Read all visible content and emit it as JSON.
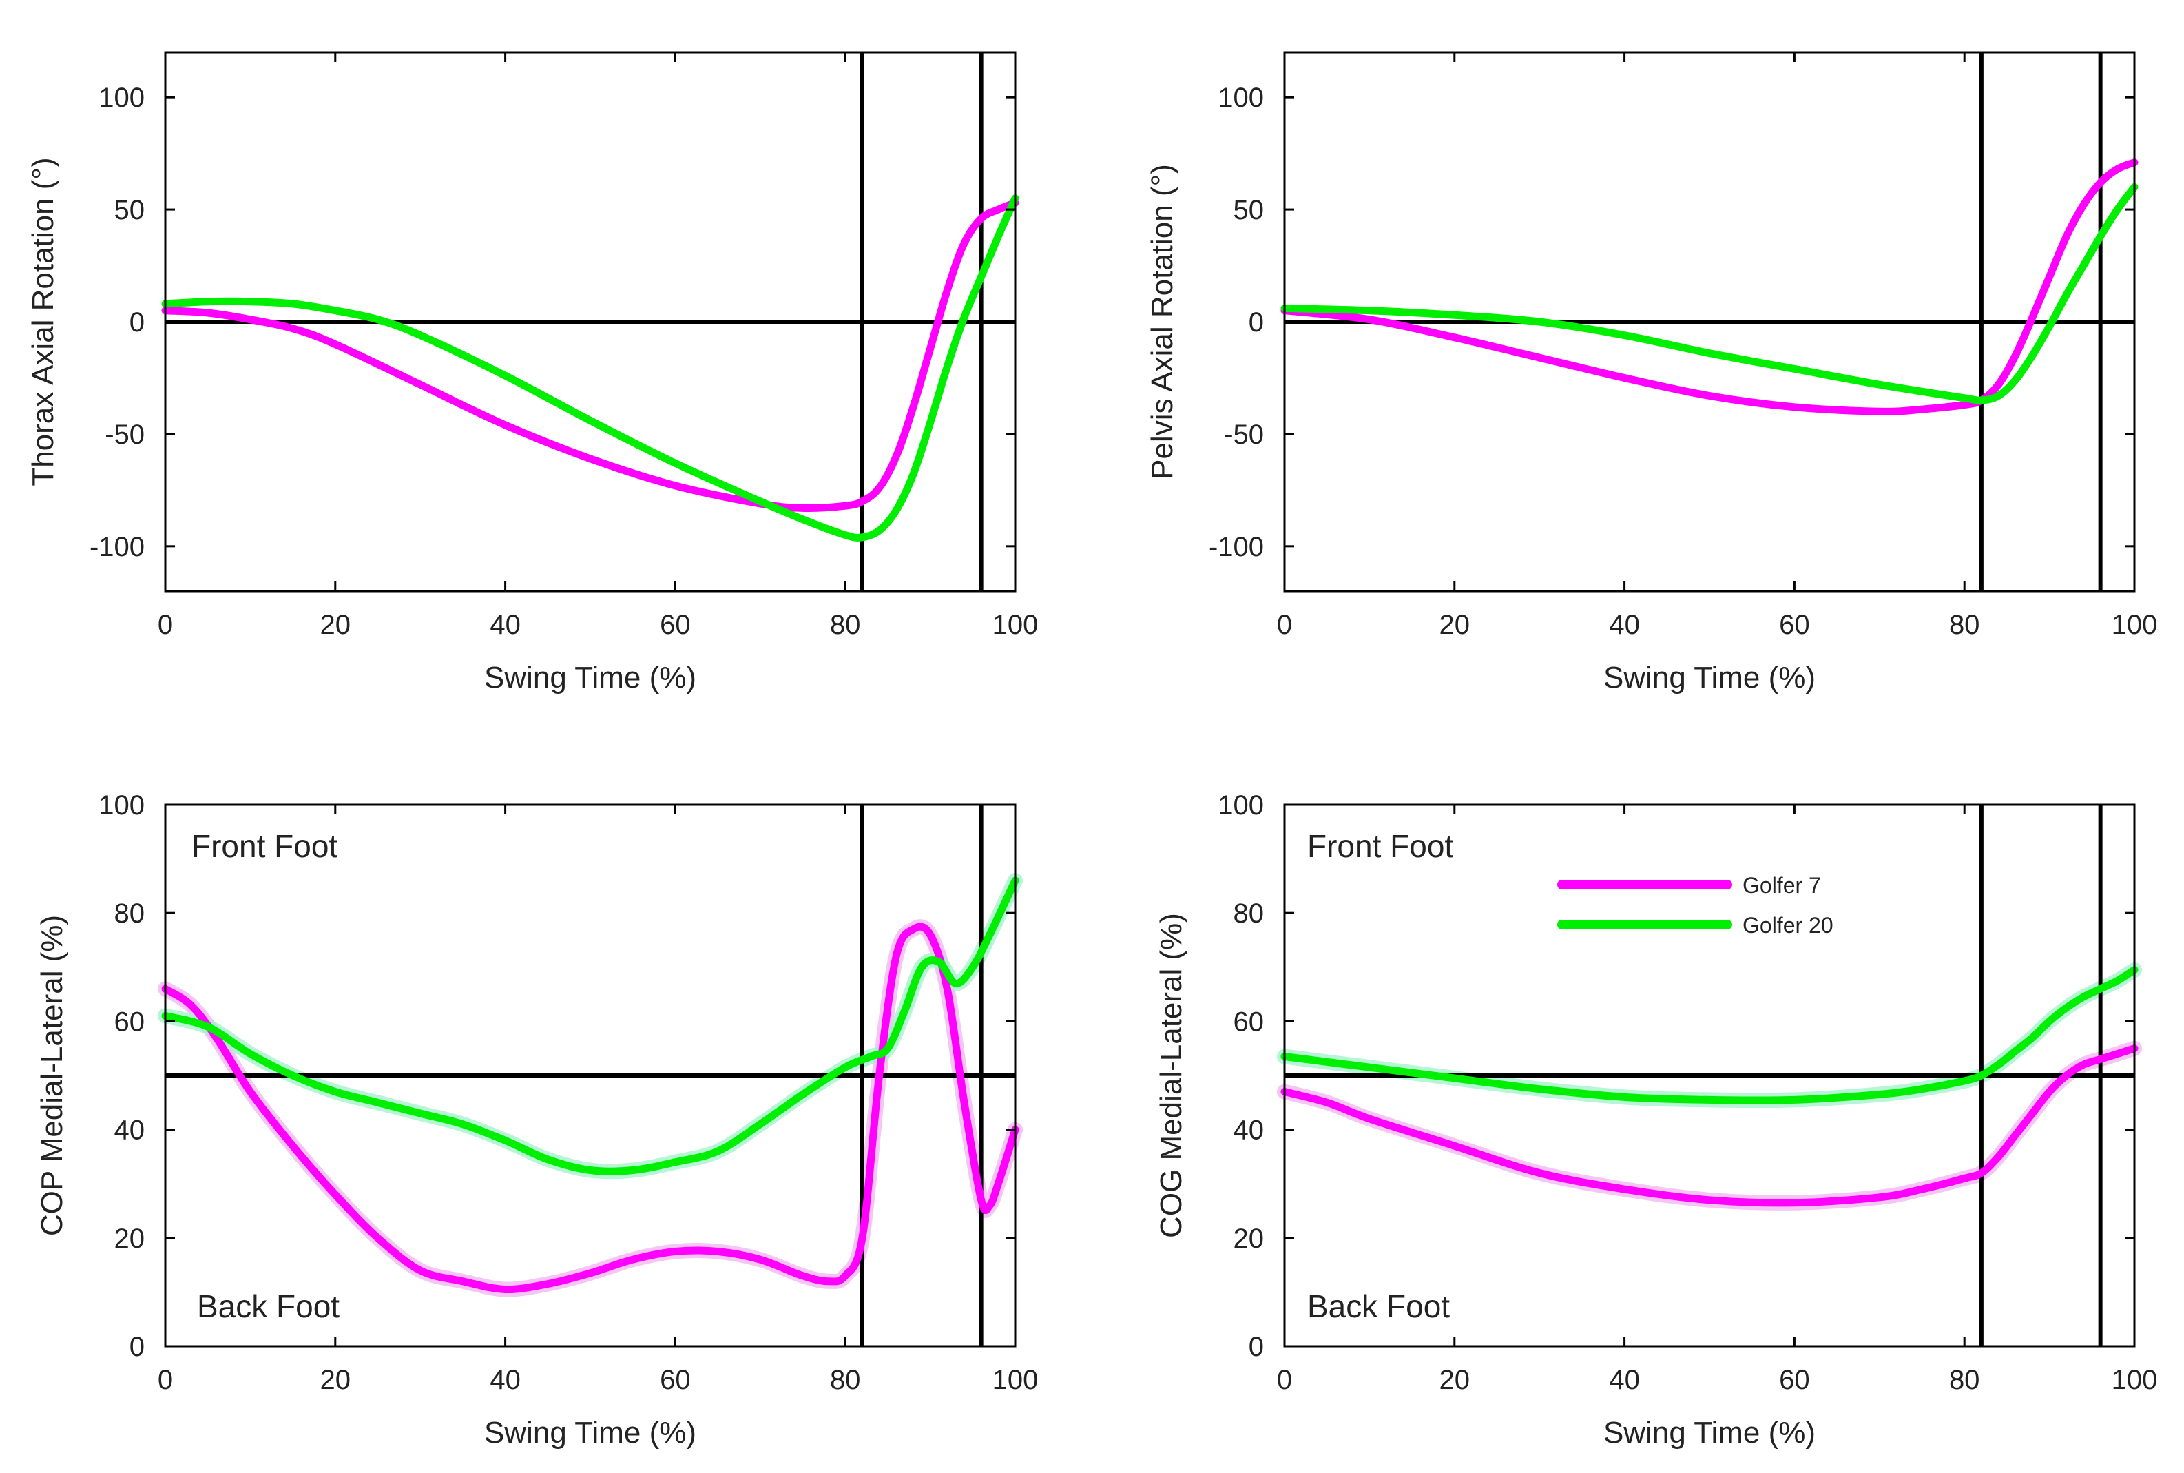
{
  "colors": {
    "golfer_7": "#ff00ff",
    "golfer_20": "#00ee00",
    "golfer_7_band": "#f2b3f2",
    "golfer_20_band": "#9ff2c9",
    "axes": "#000000"
  },
  "legend": {
    "items": [
      {
        "name": "Golfer 7",
        "color": "#ff00ff"
      },
      {
        "name": "Golfer 20",
        "color": "#00ee00"
      }
    ]
  },
  "chart_data": [
    {
      "type": "line",
      "xlabel": "Swing Time (%)",
      "ylabel": "Thorax Axial Rotation (°)",
      "xlim": [
        0,
        100
      ],
      "ylim": [
        -120,
        120
      ],
      "xticks": [
        0,
        20,
        40,
        60,
        80,
        100
      ],
      "yticks": [
        -100,
        -50,
        0,
        50,
        100
      ],
      "hlines": [
        0
      ],
      "vlines": [
        82,
        96
      ],
      "annotations": [],
      "series": [
        {
          "name": "Golfer 7",
          "x": [
            0,
            5,
            10,
            15,
            20,
            30,
            40,
            50,
            60,
            70,
            75,
            80,
            82,
            84,
            86,
            88,
            90,
            92,
            94,
            96,
            98,
            100
          ],
          "y": [
            5,
            4,
            1,
            -3,
            -10,
            -28,
            -46,
            -61,
            -73,
            -81,
            -83,
            -82,
            -80,
            -74,
            -60,
            -38,
            -12,
            14,
            35,
            46,
            50,
            53
          ]
        },
        {
          "name": "Golfer 20",
          "x": [
            0,
            5,
            10,
            15,
            20,
            25,
            30,
            40,
            50,
            60,
            70,
            75,
            80,
            82,
            84,
            86,
            88,
            90,
            92,
            94,
            96,
            98,
            100
          ],
          "y": [
            8,
            9,
            9,
            8,
            5,
            1,
            -6,
            -24,
            -44,
            -63,
            -80,
            -88,
            -95,
            -96,
            -93,
            -84,
            -68,
            -45,
            -20,
            2,
            20,
            38,
            55
          ]
        }
      ]
    },
    {
      "type": "line",
      "xlabel": "Swing Time (%)",
      "ylabel": "Pelvis Axial Rotation (°)",
      "xlim": [
        0,
        100
      ],
      "ylim": [
        -120,
        120
      ],
      "xticks": [
        0,
        20,
        40,
        60,
        80,
        100
      ],
      "yticks": [
        -100,
        -50,
        0,
        50,
        100
      ],
      "hlines": [
        0
      ],
      "vlines": [
        82,
        96
      ],
      "annotations": [],
      "series": [
        {
          "name": "Golfer 7",
          "x": [
            0,
            10,
            20,
            30,
            40,
            50,
            60,
            70,
            75,
            80,
            82,
            84,
            86,
            88,
            90,
            92,
            94,
            96,
            98,
            100
          ],
          "y": [
            5,
            1,
            -7,
            -16,
            -25,
            -33,
            -38,
            -40,
            -39,
            -37,
            -35,
            -28,
            -15,
            2,
            20,
            38,
            52,
            62,
            68,
            71
          ]
        },
        {
          "name": "Golfer 20",
          "x": [
            0,
            10,
            20,
            30,
            40,
            50,
            60,
            70,
            80,
            82,
            84,
            86,
            88,
            90,
            92,
            94,
            96,
            98,
            100
          ],
          "y": [
            6,
            5,
            3,
            0,
            -6,
            -14,
            -21,
            -28,
            -34,
            -35,
            -33,
            -26,
            -15,
            -2,
            12,
            25,
            38,
            50,
            60
          ]
        }
      ]
    },
    {
      "type": "line",
      "xlabel": "Swing Time (%)",
      "ylabel": "COP Medial-Lateral (%)",
      "xlim": [
        0,
        100
      ],
      "ylim": [
        0,
        100
      ],
      "xticks": [
        0,
        20,
        40,
        60,
        80,
        100
      ],
      "yticks": [
        0,
        20,
        40,
        60,
        80,
        100
      ],
      "hlines": [
        50
      ],
      "vlines": [
        82,
        96
      ],
      "annotations": [
        "Front Foot",
        "Back Foot"
      ],
      "series": [
        {
          "name": "Golfer 7",
          "x": [
            0,
            3,
            6,
            10,
            15,
            20,
            25,
            30,
            35,
            40,
            45,
            50,
            55,
            60,
            65,
            70,
            75,
            78,
            80,
            82,
            84,
            86,
            88,
            90,
            92,
            94,
            96,
            97,
            98,
            100
          ],
          "y": [
            66,
            63,
            57,
            47,
            37,
            28,
            20,
            14,
            12,
            10.5,
            11.5,
            13.5,
            16,
            17.5,
            17.5,
            16,
            13,
            12,
            13,
            20,
            50,
            72,
            77,
            76,
            66,
            45,
            27,
            26,
            30,
            40
          ]
        },
        {
          "name": "Golfer 20",
          "x": [
            0,
            5,
            10,
            15,
            20,
            25,
            30,
            35,
            40,
            45,
            50,
            55,
            60,
            65,
            70,
            75,
            80,
            83,
            85,
            87,
            89,
            91,
            93,
            95,
            97,
            100
          ],
          "y": [
            61,
            59,
            54,
            50,
            47,
            45,
            43,
            41,
            38,
            34.5,
            32.5,
            32.5,
            34,
            36,
            41,
            46.5,
            51.5,
            53.5,
            55,
            62,
            70,
            71,
            67,
            70,
            76,
            86
          ]
        }
      ]
    },
    {
      "type": "line",
      "xlabel": "Swing Time (%)",
      "ylabel": "COG Medial-Lateral (%)",
      "xlim": [
        0,
        100
      ],
      "ylim": [
        0,
        100
      ],
      "xticks": [
        0,
        20,
        40,
        60,
        80,
        100
      ],
      "yticks": [
        0,
        20,
        40,
        60,
        80,
        100
      ],
      "hlines": [
        50
      ],
      "vlines": [
        82,
        96
      ],
      "annotations": [
        "Front Foot",
        "Back Foot"
      ],
      "series": [
        {
          "name": "Golfer 7",
          "x": [
            0,
            5,
            10,
            20,
            30,
            40,
            50,
            60,
            70,
            75,
            80,
            82,
            84,
            86,
            88,
            90,
            92,
            94,
            96,
            98,
            100
          ],
          "y": [
            47,
            45,
            42,
            37,
            32,
            29,
            27,
            26.5,
            27.5,
            29,
            31,
            32,
            35,
            39,
            43,
            47,
            50,
            52,
            53,
            54,
            55
          ]
        },
        {
          "name": "Golfer 20",
          "x": [
            0,
            10,
            20,
            30,
            40,
            50,
            60,
            70,
            75,
            80,
            82,
            84,
            86,
            88,
            90,
            92,
            94,
            96,
            98,
            100
          ],
          "y": [
            53.5,
            51.5,
            49.5,
            47.5,
            46,
            45.5,
            45.5,
            46.5,
            47.5,
            49,
            50,
            52,
            54.5,
            57,
            60,
            62.5,
            64.5,
            66,
            67.5,
            69.5
          ]
        }
      ]
    }
  ]
}
